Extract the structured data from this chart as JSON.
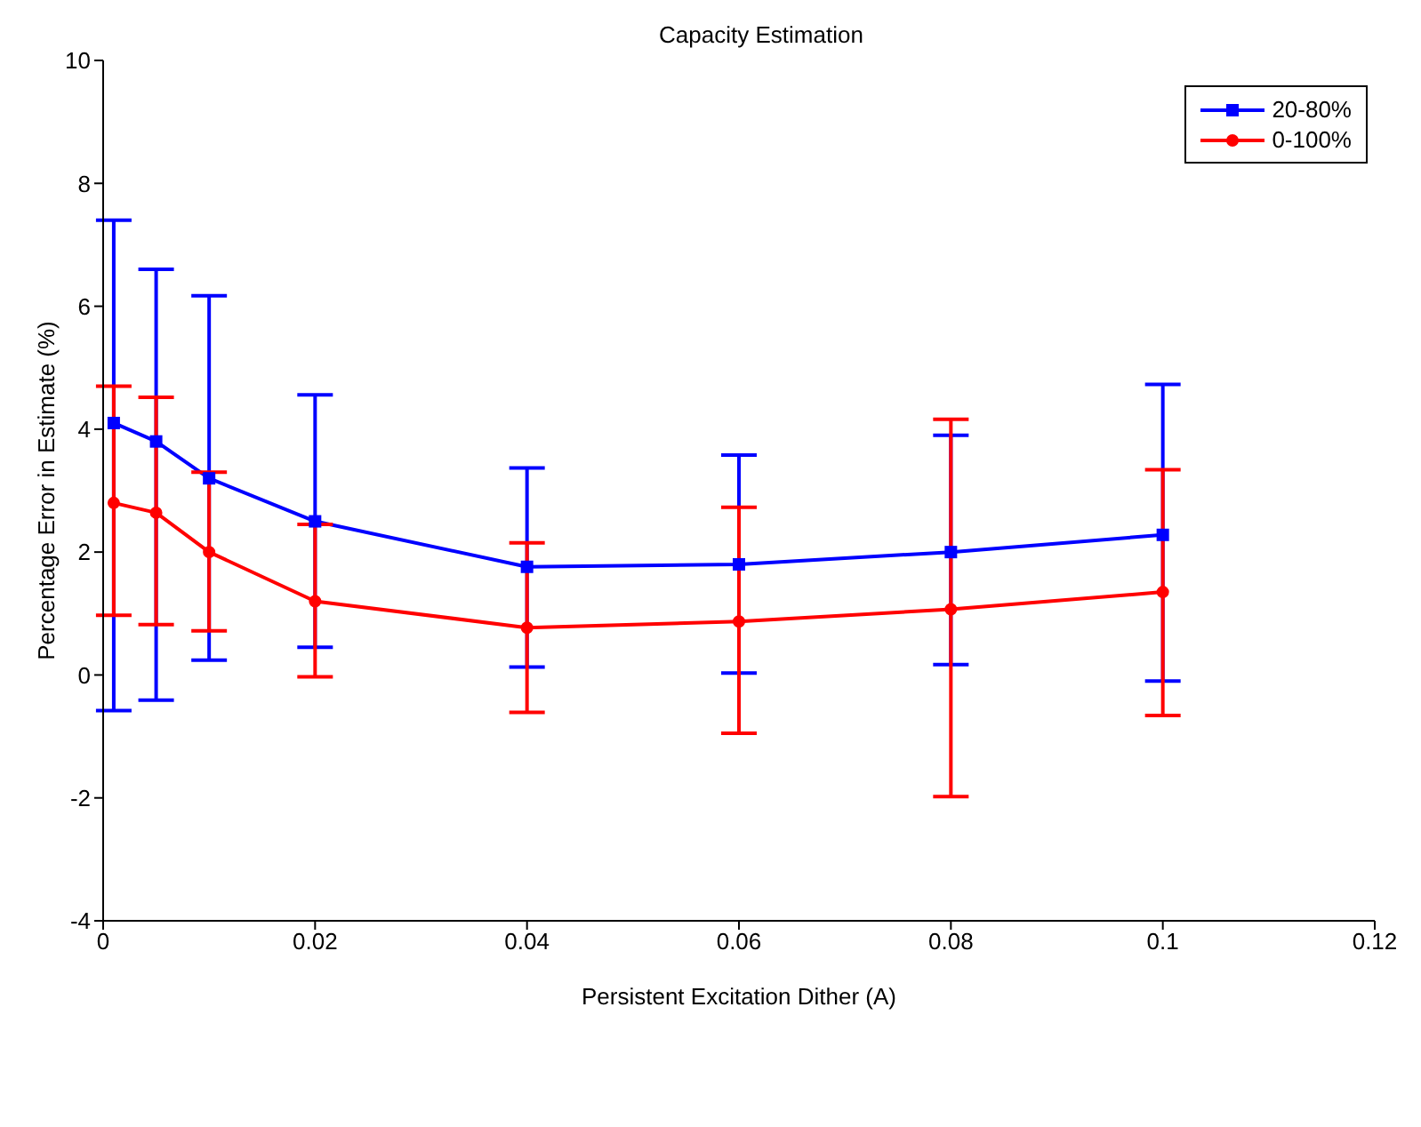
{
  "chart_data": {
    "type": "line",
    "title": "Capacity Estimation",
    "xlabel": "Persistent Excitation Dither (A)",
    "ylabel": "Percentage Error in Estimate (%)",
    "x": [
      0.001,
      0.005,
      0.01,
      0.02,
      0.04,
      0.06,
      0.08,
      0.1
    ],
    "series": [
      {
        "name": "20-80%",
        "color": "#0000ff",
        "marker": "square",
        "values": [
          4.1,
          3.8,
          3.2,
          2.5,
          1.76,
          1.8,
          2.0,
          2.28
        ],
        "errors": [
          [
            -0.58,
            7.4
          ],
          [
            -0.41,
            6.6
          ],
          [
            0.24,
            6.17
          ],
          [
            0.45,
            4.56
          ],
          [
            0.13,
            3.37
          ],
          [
            0.03,
            3.58
          ],
          [
            0.17,
            3.9
          ],
          [
            -0.1,
            4.73
          ]
        ]
      },
      {
        "name": "0-100%",
        "color": "#ff0000",
        "marker": "circle",
        "values": [
          2.8,
          2.64,
          2.0,
          1.2,
          0.77,
          0.87,
          1.07,
          1.35
        ],
        "errors": [
          [
            0.97,
            4.7
          ],
          [
            0.82,
            4.52
          ],
          [
            0.72,
            3.3
          ],
          [
            -0.03,
            2.45
          ],
          [
            -0.61,
            2.15
          ],
          [
            -0.95,
            2.73
          ],
          [
            -1.98,
            4.16
          ],
          [
            -0.66,
            3.34
          ]
        ]
      }
    ],
    "xlim": [
      0,
      0.12
    ],
    "xticks": [
      0,
      0.02,
      0.04,
      0.06,
      0.08,
      0.1,
      0.12
    ],
    "ylim": [
      -4,
      10
    ],
    "yticks": [
      -4,
      -2,
      0,
      2,
      4,
      6,
      8,
      10
    ],
    "grid": false,
    "legend": "top right",
    "line_style": "solid"
  }
}
